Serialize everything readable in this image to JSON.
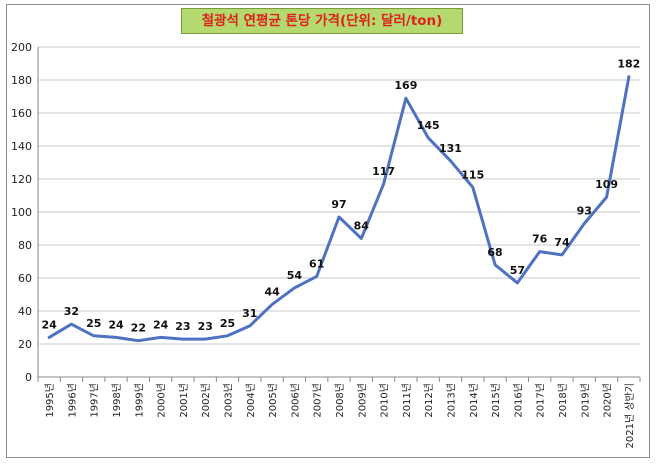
{
  "chart_data": {
    "type": "line",
    "title": "철광석 연평균 톤당 가격(단위: 달러/ton)",
    "xlabel": "",
    "ylabel": "",
    "ylim": [
      0,
      200
    ],
    "yticks": [
      0,
      20,
      40,
      60,
      80,
      100,
      120,
      140,
      160,
      180,
      200
    ],
    "grid": true,
    "legend": "none",
    "x": [
      "1995년",
      "1996년",
      "1997년",
      "1998년",
      "1999년",
      "2000년",
      "2001년",
      "2002년",
      "2003년",
      "2004년",
      "2005년",
      "2006년",
      "2007년",
      "2008년",
      "2009년",
      "2010년",
      "2011년",
      "2012년",
      "2013년",
      "2014년",
      "2015년",
      "2016년",
      "2017년",
      "2018년",
      "2019년",
      "2020년",
      "2021년 상반기"
    ],
    "series": [
      {
        "values": [
          24,
          32,
          25,
          24,
          22,
          24,
          23,
          23,
          25,
          31,
          44,
          54,
          61,
          97,
          84,
          117,
          169,
          145,
          131,
          115,
          68,
          57,
          76,
          74,
          93,
          109,
          182
        ],
        "color": "#4f72c0"
      }
    ]
  }
}
